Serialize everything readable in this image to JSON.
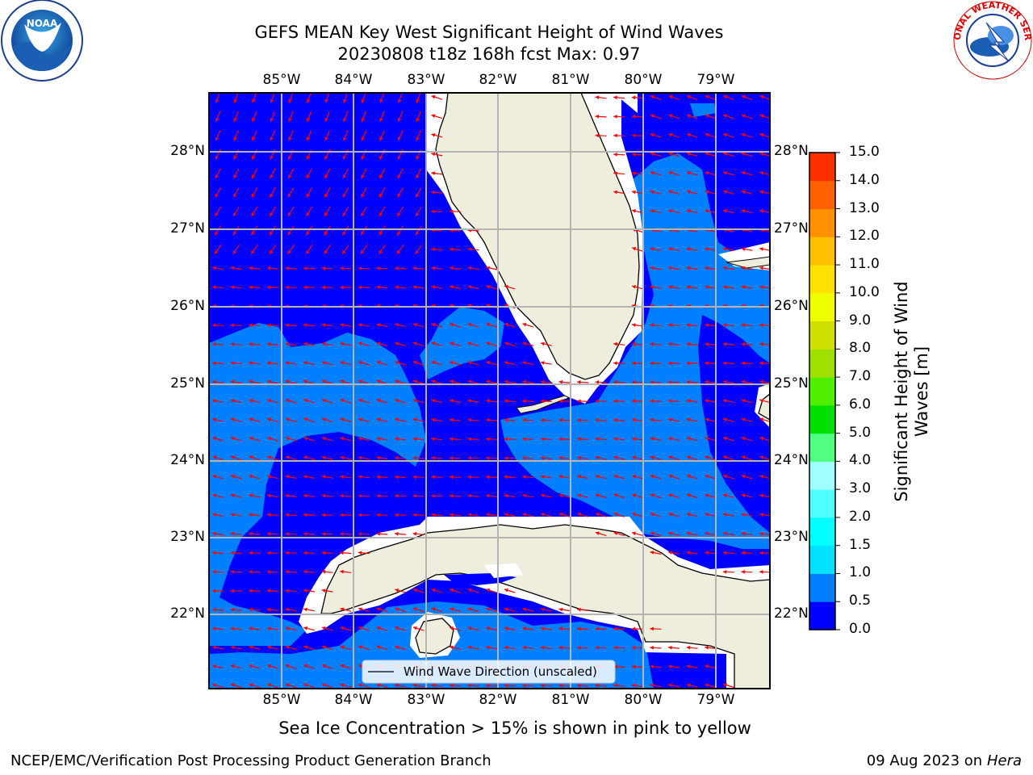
{
  "title": {
    "line1": "GEFS MEAN Key West Significant Height of Wind Waves",
    "line2": "20230808 t18z 168h fcst   Max: 0.97"
  },
  "map": {
    "lon_ticks": [
      "85°W",
      "84°W",
      "83°W",
      "82°W",
      "81°W",
      "80°W",
      "79°W"
    ],
    "lat_ticks": [
      "28°N",
      "27°N",
      "26°N",
      "25°N",
      "24°N",
      "23°N",
      "22°N"
    ],
    "lon_values": [
      -85,
      -84,
      -83,
      -82,
      -81,
      -80,
      -79
    ],
    "lat_values": [
      28,
      27,
      26,
      25,
      24,
      23,
      22
    ],
    "extent": {
      "lon_min": -86,
      "lon_max": -78.25,
      "lat_min": 21.0,
      "lat_max": 28.75
    },
    "legend_label": "Wind Wave Direction (unscaled)",
    "colors": {
      "ocean_low": "#0000ff",
      "ocean_mid": "#0080ff",
      "land": "#efeedd",
      "arrow": "#ff0000",
      "grid": "#b4b4b4"
    }
  },
  "colorbar": {
    "title": "Significant Height of Wind Waves [m]",
    "ticks": [
      "0.0",
      "0.5",
      "1.0",
      "1.5",
      "2.0",
      "3.0",
      "4.0",
      "5.0",
      "6.0",
      "7.0",
      "8.0",
      "9.0",
      "10.0",
      "11.0",
      "12.0",
      "13.0",
      "14.0",
      "15.0"
    ],
    "colors": [
      "#0000ff",
      "#0080ff",
      "#00e0ff",
      "#00ffff",
      "#50ffff",
      "#a0ffff",
      "#50ff80",
      "#00e000",
      "#50f000",
      "#a0e000",
      "#d0e000",
      "#f0ff00",
      "#ffe000",
      "#ffc000",
      "#ff9000",
      "#ff6000",
      "#ff3000",
      "#ff0000"
    ]
  },
  "footer": {
    "note": "Sea Ice Concentration > 15% is shown in pink to yellow",
    "credit": "NCEP/EMC/Verification Post Processing Product Generation Branch",
    "date": "09 Aug 2023 on",
    "machine": "Hera"
  },
  "logos": {
    "left": "NOAA",
    "right": "NATIONAL WEATHER SERVICE"
  }
}
